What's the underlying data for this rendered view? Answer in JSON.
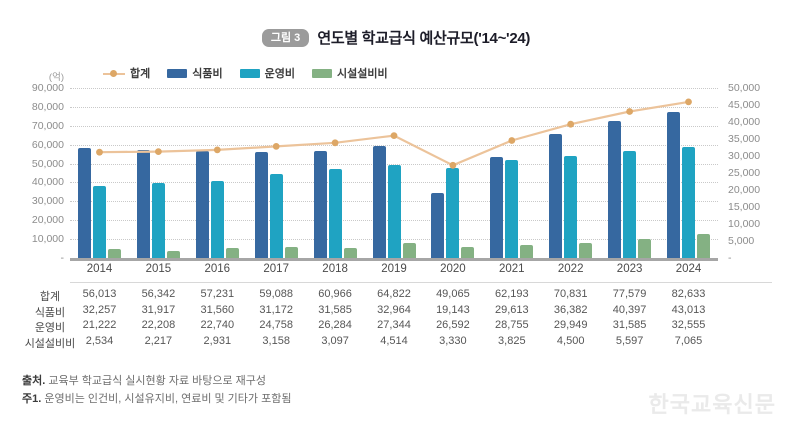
{
  "header": {
    "badge": "그림 3",
    "title": "연도별 학교급식 예산규모('14~'24)"
  },
  "chart_data": {
    "type": "combo",
    "unit": "(억)",
    "title": "연도별 학교급식 예산규모('14~'24)",
    "grid": "dotted horizontal",
    "legend_position": "top",
    "categories": [
      "2014",
      "2015",
      "2016",
      "2017",
      "2018",
      "2019",
      "2020",
      "2021",
      "2022",
      "2023",
      "2024"
    ],
    "series": [
      {
        "id": "total",
        "name": "합계",
        "type": "line",
        "axis": "left",
        "color": "#ecc39a",
        "marker_color": "#dda766",
        "values": [
          56013,
          56342,
          57231,
          59088,
          60966,
          64822,
          49065,
          62193,
          70831,
          77579,
          82633
        ]
      },
      {
        "id": "food",
        "name": "식품비",
        "type": "bar",
        "axis": "right",
        "color": "#3668a0",
        "values": [
          32257,
          31917,
          31560,
          31172,
          31585,
          32964,
          19143,
          29613,
          36382,
          40397,
          43013
        ]
      },
      {
        "id": "operation",
        "name": "운영비",
        "type": "bar",
        "axis": "right",
        "color": "#1fa3c2",
        "values": [
          21222,
          22208,
          22740,
          24758,
          26284,
          27344,
          26592,
          28755,
          29949,
          31585,
          32555
        ]
      },
      {
        "id": "facility",
        "name": "시설설비비",
        "type": "bar",
        "axis": "right",
        "color": "#84b183",
        "values": [
          2534,
          2217,
          2931,
          3158,
          3097,
          4514,
          3330,
          3825,
          4500,
          5597,
          7065
        ]
      }
    ],
    "left_axis": {
      "range": [
        0,
        90000
      ],
      "ticks": [
        "90,000",
        "80,000",
        "70,000",
        "60,000",
        "50,000",
        "40,000",
        "30,000",
        "20,000",
        "10,000",
        "-"
      ]
    },
    "right_axis": {
      "range": [
        0,
        50000
      ],
      "ticks": [
        "50,000",
        "45,000",
        "40,000",
        "35,000",
        "30,000",
        "25,000",
        "20,000",
        "15,000",
        "10,000",
        "5,000",
        "-"
      ]
    }
  },
  "table": {
    "rows": [
      {
        "label": "합계",
        "values": [
          "56,013",
          "56,342",
          "57,231",
          "59,088",
          "60,966",
          "64,822",
          "49,065",
          "62,193",
          "70,831",
          "77,579",
          "82,633"
        ]
      },
      {
        "label": "식품비",
        "values": [
          "32,257",
          "31,917",
          "31,560",
          "31,172",
          "31,585",
          "32,964",
          "19,143",
          "29,613",
          "36,382",
          "40,397",
          "43,013"
        ]
      },
      {
        "label": "운영비",
        "values": [
          "21,222",
          "22,208",
          "22,740",
          "24,758",
          "26,284",
          "27,344",
          "26,592",
          "28,755",
          "29,949",
          "31,585",
          "32,555"
        ]
      },
      {
        "label": "시설설비비",
        "values": [
          "2,534",
          "2,217",
          "2,931",
          "3,158",
          "3,097",
          "4,514",
          "3,330",
          "3,825",
          "4,500",
          "5,597",
          "7,065"
        ]
      }
    ]
  },
  "footnotes": {
    "source_prefix": "출처.",
    "source_text": "교육부 학교급식 실시현황 자료 바탕으로 재구성",
    "note_prefix": "주1.",
    "note_text": "운영비는 인건비, 시설유지비, 연료비 및 기타가 포함됨"
  },
  "watermark": "한국교육신문"
}
